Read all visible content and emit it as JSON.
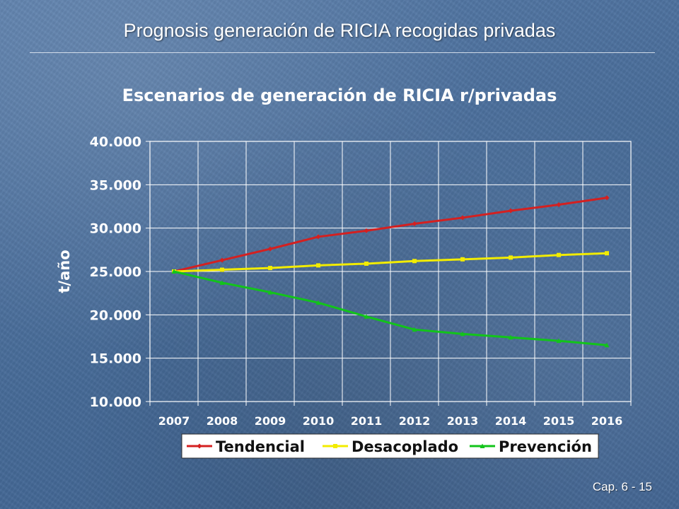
{
  "slide": {
    "title": "Prognosis generación de RICIA recogidas privadas",
    "footer": "Cap. 6 - 15"
  },
  "chart_data": {
    "type": "line",
    "title": "Escenarios de generación de RICIA r/privadas",
    "xlabel": "",
    "ylabel": "t/año",
    "categories": [
      "2007",
      "2008",
      "2009",
      "2010",
      "2011",
      "2012",
      "2013",
      "2014",
      "2015",
      "2016"
    ],
    "ylim": [
      10000,
      40000
    ],
    "yticks": [
      {
        "value": 10000,
        "label": "10.000"
      },
      {
        "value": 15000,
        "label": "15.000"
      },
      {
        "value": 20000,
        "label": "20.000"
      },
      {
        "value": 25000,
        "label": "25.000"
      },
      {
        "value": 30000,
        "label": "30.000"
      },
      {
        "value": 35000,
        "label": "35.000"
      },
      {
        "value": 40000,
        "label": "40.000"
      }
    ],
    "grid": true,
    "legend_position": "bottom",
    "series": [
      {
        "name": "Tendencial",
        "color": "#d42020",
        "marker": "diamond",
        "values": [
          25000,
          26300,
          27600,
          29000,
          29700,
          30500,
          31200,
          32000,
          32700,
          33500
        ]
      },
      {
        "name": "Desacoplado",
        "color": "#f2ec00",
        "marker": "square",
        "values": [
          25000,
          25200,
          25400,
          25700,
          25900,
          26200,
          26400,
          26600,
          26900,
          27100
        ]
      },
      {
        "name": "Prevención",
        "color": "#12c41a",
        "marker": "triangle",
        "values": [
          25000,
          23700,
          22600,
          21400,
          19800,
          18300,
          17800,
          17400,
          17000,
          16500
        ]
      }
    ]
  }
}
